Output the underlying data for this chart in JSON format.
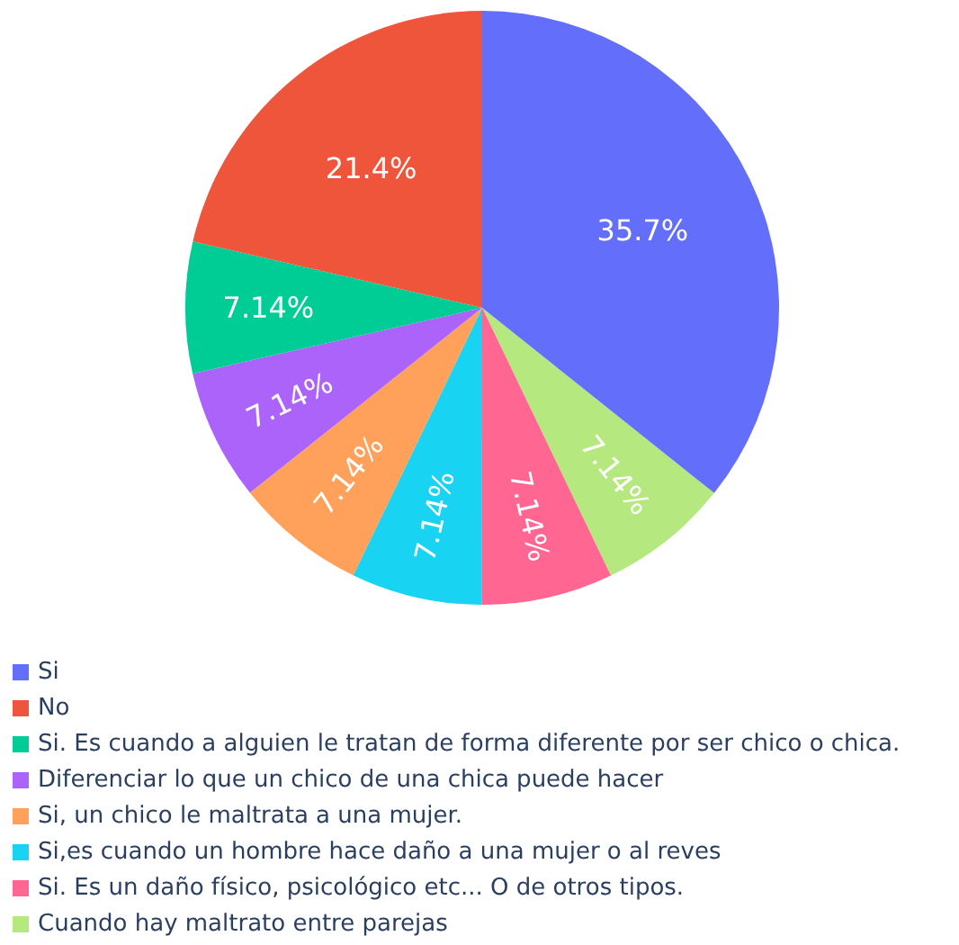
{
  "chart_data": {
    "type": "pie",
    "categories": [
      "Si",
      "No",
      "Si. Es cuando a alguien le tratan de forma diferente por ser chico o chica.",
      "Diferenciar lo que un chico de una chica puede hacer",
      "Si, un chico le maltrata a una mujer.",
      "Si,es cuando un hombre hace daño a una mujer o al reves",
      "Si. Es un daño físico, psicológico etc... O de otros tipos.",
      "Cuando hay maltrato entre parejas"
    ],
    "values": [
      35.7,
      21.4,
      7.14,
      7.14,
      7.14,
      7.14,
      7.14,
      7.14
    ],
    "colors": [
      "#636efa",
      "#ef553b",
      "#00cc96",
      "#ab63fa",
      "#ffa15a",
      "#19d3f3",
      "#ff6692",
      "#b6e880"
    ],
    "value_labels": [
      "35.7%",
      "21.4%",
      "7.14%",
      "7.14%",
      "7.14%",
      "7.14%",
      "7.14%",
      "7.14%"
    ],
    "legend": "bottom left"
  }
}
